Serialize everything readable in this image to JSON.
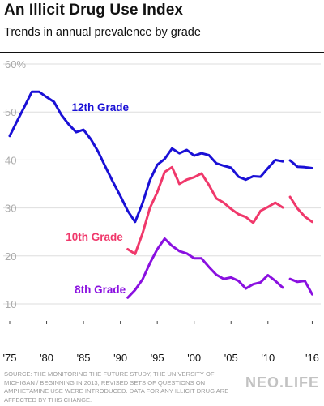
{
  "header": {
    "title": "An Illicit Drug Use Index",
    "subtitle": "Trends in annual prevalence by grade"
  },
  "footer": {
    "source": "SOURCE: THE MONITORING THE FUTURE STUDY, THE UNIVERSITY OF MICHIGAN / BEGINNING IN 2013, REVISED SETS OF QUESTIONS ON AMPHETAMINE USE WERE INTRODUCED. DATA FOR ANY ILLICIT DRUG ARE AFFECTED BY THIS CHANGE.",
    "brand": "NEO.LIFE"
  },
  "chart_data": {
    "type": "line",
    "title": "An Illicit Drug Use Index",
    "subtitle": "Trends in annual prevalence by grade",
    "xlabel": "",
    "ylabel": "",
    "xlim": [
      1975,
      2016.5
    ],
    "ylim": [
      10,
      60
    ],
    "grid": true,
    "legend": "inline labels",
    "x_ticks": [
      {
        "value": 1975,
        "label": "'75"
      },
      {
        "value": 1980,
        "label": "'80"
      },
      {
        "value": 1985,
        "label": "'85"
      },
      {
        "value": 1990,
        "label": "'90"
      },
      {
        "value": 1995,
        "label": "'95"
      },
      {
        "value": 2000,
        "label": "'00"
      },
      {
        "value": 2005,
        "label": "'05"
      },
      {
        "value": 2010,
        "label": "'10"
      },
      {
        "value": 2016,
        "label": "'16"
      }
    ],
    "y_ticks": [
      {
        "value": 10,
        "label": "10"
      },
      {
        "value": 20,
        "label": "20"
      },
      {
        "value": 30,
        "label": "30"
      },
      {
        "value": 40,
        "label": "40"
      },
      {
        "value": 50,
        "label": "50"
      },
      {
        "value": 60,
        "label": "60%"
      }
    ],
    "series": [
      {
        "name": "12th Grade",
        "color": "#1a10d6",
        "segments": [
          {
            "x": [
              1975,
              1976,
              1977,
              1978,
              1979,
              1980,
              1981,
              1982,
              1983,
              1984,
              1985,
              1986,
              1987,
              1988,
              1989,
              1990,
              1991,
              1992,
              1993,
              1994,
              1995,
              1996,
              1997,
              1998,
              1999,
              2000,
              2001,
              2002,
              2003,
              2004,
              2005,
              2006,
              2007,
              2008,
              2009,
              2010,
              2011,
              2012
            ],
            "y": [
              45.0,
              48.1,
              51.1,
              54.2,
              54.2,
              53.1,
              52.1,
              49.4,
              47.4,
              45.8,
              46.3,
              44.3,
              41.7,
              38.5,
              35.4,
              32.5,
              29.4,
              27.1,
              31.0,
              35.8,
              39.0,
              40.2,
              42.4,
              41.4,
              42.1,
              40.9,
              41.4,
              41.0,
              39.3,
              38.8,
              38.4,
              36.5,
              35.9,
              36.6,
              36.5,
              38.3,
              40.0,
              39.7
            ]
          },
          {
            "x": [
              2013,
              2014,
              2015,
              2016
            ],
            "y": [
              39.9,
              38.6,
              38.5,
              38.3
            ]
          }
        ]
      },
      {
        "name": "10th Grade",
        "color": "#f0386b",
        "segments": [
          {
            "x": [
              1991,
              1992,
              1993,
              1994,
              1995,
              1996,
              1997,
              1998,
              1999,
              2000,
              2001,
              2002,
              2003,
              2004,
              2005,
              2006,
              2007,
              2008,
              2009,
              2010,
              2011,
              2012
            ],
            "y": [
              21.4,
              20.4,
              24.7,
              30.0,
              33.3,
              37.5,
              38.5,
              35.0,
              35.9,
              36.4,
              37.2,
              34.8,
              32.0,
              31.1,
              29.8,
              28.7,
              28.1,
              26.9,
              29.4,
              30.2,
              31.1,
              30.1
            ]
          },
          {
            "x": [
              2013,
              2014,
              2015,
              2016
            ],
            "y": [
              32.3,
              29.9,
              28.2,
              27.1
            ]
          }
        ]
      },
      {
        "name": "8th Grade",
        "color": "#8a10e0",
        "segments": [
          {
            "x": [
              1991,
              1992,
              1993,
              1994,
              1995,
              1996,
              1997,
              1998,
              1999,
              2000,
              2001,
              2002,
              2003,
              2004,
              2005,
              2006,
              2007,
              2008,
              2009,
              2010,
              2011,
              2012
            ],
            "y": [
              11.3,
              12.9,
              15.1,
              18.5,
              21.4,
              23.6,
              22.1,
              21.0,
              20.5,
              19.5,
              19.5,
              17.7,
              16.1,
              15.2,
              15.5,
              14.8,
              13.2,
              14.1,
              14.5,
              16.0,
              14.8,
              13.4
            ]
          },
          {
            "x": [
              2013,
              2014,
              2015,
              2016
            ],
            "y": [
              15.2,
              14.6,
              14.8,
              12.0
            ]
          }
        ]
      }
    ]
  }
}
